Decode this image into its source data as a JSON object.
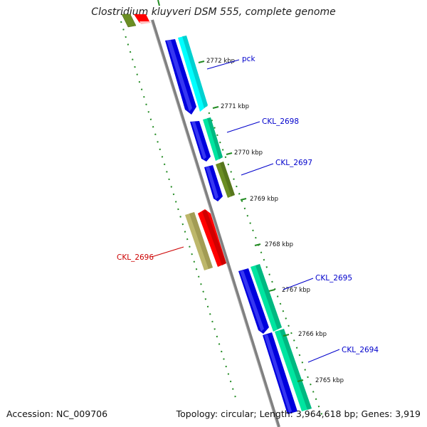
{
  "title": "Clostridium kluyveri DSM 555, complete genome",
  "footer": {
    "accession": "Accession: NC_009706",
    "summary": "Topology: circular; Length: 3,964,618 bp; Genes: 3,919"
  },
  "colors": {
    "backbone": "#808080",
    "tick": "#228b22",
    "forward_label": "#0000cc",
    "reverse_label": "#cc0000",
    "blue_gene": "#0000dd",
    "cyan_gene": "#00ffff",
    "aqua_gene": "#00e5a0",
    "olive_gene": "#6b8e23",
    "khaki_gene": "#bdb76b",
    "red_gene": "#ff0000"
  },
  "ticks": [
    "2772 kbp",
    "2771 kbp",
    "2770 kbp",
    "2769 kbp",
    "2768 kbp",
    "2767 kbp",
    "2766 kbp",
    "2765 kbp"
  ],
  "genes": [
    "pck",
    "CKL_2698",
    "CKL_2697",
    "CKL_2696",
    "CKL_2695",
    "CKL_2694"
  ]
}
